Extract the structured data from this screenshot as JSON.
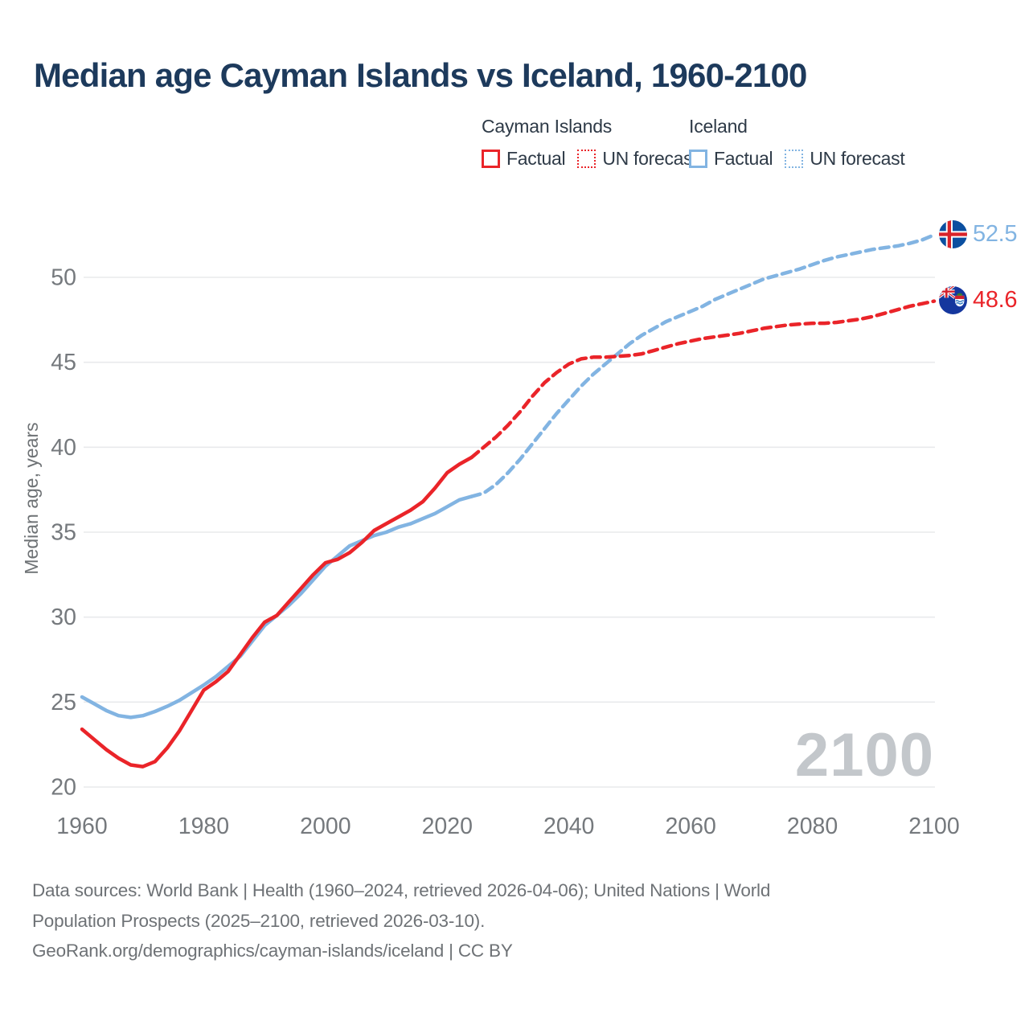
{
  "title": "Median age Cayman Islands vs Iceland, 1960-2100",
  "colors": {
    "cayman": "#ea2429",
    "iceland": "#82b4e2",
    "title_text": "#1d3a5c",
    "legend_text": "#2e3a47",
    "axis_text": "#75797d",
    "grid": "#e8eaec",
    "footer_text": "#6e7276",
    "watermark": "#c3c7cb"
  },
  "legend": {
    "groups": [
      {
        "name": "Cayman Islands",
        "items": [
          {
            "label": "Factual",
            "style": "solid"
          },
          {
            "label": "UN forecast",
            "style": "dotted"
          }
        ]
      },
      {
        "name": "Iceland",
        "items": [
          {
            "label": "Factual",
            "style": "solid"
          },
          {
            "label": "UN forecast",
            "style": "dotted"
          }
        ]
      }
    ]
  },
  "watermark": "2100",
  "footer": {
    "line1": "Data sources: World Bank | Health (1960–2024, retrieved 2026-04-06); United Nations | World",
    "line2": "Population Prospects (2025–2100, retrieved 2026-03-10).",
    "line3": "GeoRank.org/demographics/cayman-islands/iceland | CC BY"
  },
  "chart_data": {
    "type": "line",
    "title": "Median age Cayman Islands vs Iceland, 1960-2100",
    "xlabel": "",
    "ylabel": "Median age, years",
    "xlim": [
      1960,
      2100
    ],
    "ylim": [
      20,
      53
    ],
    "x_ticks": [
      1960,
      1980,
      2000,
      2020,
      2040,
      2060,
      2080,
      2100
    ],
    "y_ticks": [
      20,
      25,
      30,
      35,
      40,
      45,
      50
    ],
    "grid": true,
    "legend_position": "top-right",
    "annotations": [
      {
        "series": "Iceland UN forecast",
        "year": 2100,
        "value": 52.5,
        "text": "52.5"
      },
      {
        "series": "Cayman Islands UN forecast",
        "year": 2100,
        "value": 48.6,
        "text": "48.6"
      }
    ],
    "series": [
      {
        "id": "iceland-factual",
        "label": "Iceland Factual",
        "color": "#82b4e2",
        "dashed": false,
        "years": [
          1960,
          1962,
          1964,
          1966,
          1968,
          1970,
          1972,
          1974,
          1976,
          1978,
          1980,
          1982,
          1984,
          1986,
          1988,
          1990,
          1992,
          1994,
          1996,
          1998,
          2000,
          2002,
          2004,
          2006,
          2008,
          2010,
          2012,
          2014,
          2016,
          2018,
          2020,
          2022,
          2024
        ],
        "values": [
          25.3,
          24.9,
          24.5,
          24.2,
          24.1,
          24.2,
          24.45,
          24.75,
          25.1,
          25.55,
          26.0,
          26.5,
          27.1,
          27.7,
          28.6,
          29.5,
          30.1,
          30.7,
          31.4,
          32.2,
          33.0,
          33.6,
          34.2,
          34.5,
          34.8,
          35.0,
          35.3,
          35.5,
          35.8,
          36.1,
          36.5,
          36.9,
          37.1
        ]
      },
      {
        "id": "iceland-un-forecast",
        "label": "Iceland UN forecast",
        "color": "#82b4e2",
        "dashed": true,
        "years": [
          2024,
          2026,
          2028,
          2030,
          2032,
          2034,
          2036,
          2038,
          2040,
          2042,
          2044,
          2046,
          2048,
          2050,
          2052,
          2054,
          2056,
          2058,
          2060,
          2062,
          2064,
          2066,
          2068,
          2070,
          2072,
          2074,
          2076,
          2078,
          2080,
          2082,
          2084,
          2086,
          2088,
          2090,
          2092,
          2094,
          2096,
          2098,
          2100
        ],
        "values": [
          37.1,
          37.3,
          37.8,
          38.5,
          39.3,
          40.2,
          41.1,
          42.0,
          42.8,
          43.6,
          44.3,
          44.9,
          45.5,
          46.1,
          46.6,
          47.0,
          47.4,
          47.7,
          48.0,
          48.3,
          48.7,
          49.0,
          49.3,
          49.6,
          49.9,
          50.1,
          50.3,
          50.5,
          50.75,
          51.0,
          51.2,
          51.35,
          51.5,
          51.65,
          51.75,
          51.85,
          52.0,
          52.2,
          52.5
        ]
      },
      {
        "id": "cayman-islands-factual",
        "label": "Cayman Islands Factual",
        "color": "#ea2429",
        "dashed": false,
        "years": [
          1960,
          1962,
          1964,
          1966,
          1968,
          1970,
          1972,
          1974,
          1976,
          1978,
          1980,
          1982,
          1984,
          1986,
          1988,
          1990,
          1992,
          1994,
          1996,
          1998,
          2000,
          2002,
          2004,
          2006,
          2008,
          2010,
          2012,
          2014,
          2016,
          2018,
          2020,
          2022,
          2024
        ],
        "values": [
          23.4,
          22.8,
          22.2,
          21.7,
          21.3,
          21.2,
          21.5,
          22.3,
          23.3,
          24.5,
          25.7,
          26.2,
          26.8,
          27.8,
          28.8,
          29.7,
          30.1,
          30.9,
          31.7,
          32.5,
          33.2,
          33.4,
          33.8,
          34.4,
          35.1,
          35.5,
          35.9,
          36.3,
          36.8,
          37.6,
          38.5,
          39.0,
          39.4
        ]
      },
      {
        "id": "cayman-islands-un-forecast",
        "label": "Cayman Islands UN forecast",
        "color": "#ea2429",
        "dashed": true,
        "years": [
          2024,
          2026,
          2028,
          2030,
          2032,
          2034,
          2036,
          2038,
          2040,
          2042,
          2044,
          2046,
          2048,
          2050,
          2052,
          2054,
          2056,
          2058,
          2060,
          2062,
          2064,
          2066,
          2068,
          2070,
          2072,
          2074,
          2076,
          2078,
          2080,
          2082,
          2084,
          2086,
          2088,
          2090,
          2092,
          2094,
          2096,
          2098,
          2100
        ],
        "values": [
          39.4,
          40.0,
          40.6,
          41.3,
          42.1,
          43.0,
          43.8,
          44.4,
          44.9,
          45.2,
          45.3,
          45.3,
          45.35,
          45.4,
          45.5,
          45.7,
          45.9,
          46.1,
          46.25,
          46.4,
          46.5,
          46.6,
          46.7,
          46.85,
          47.0,
          47.1,
          47.2,
          47.25,
          47.3,
          47.3,
          47.35,
          47.45,
          47.55,
          47.7,
          47.9,
          48.1,
          48.3,
          48.45,
          48.6
        ]
      }
    ]
  }
}
